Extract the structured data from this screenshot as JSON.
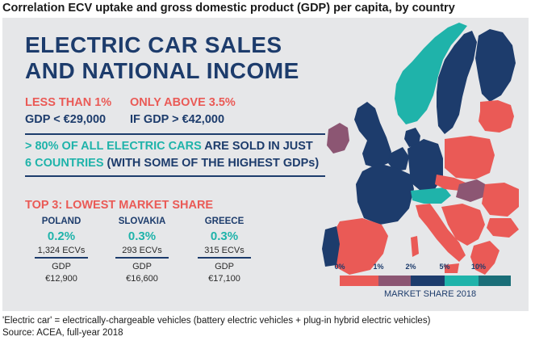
{
  "heading": "Correlation ECV uptake and gross domestic product (GDP) per capita, by country",
  "title": {
    "line1": "ELECTRIC CAR SALES",
    "line2": "AND NATIONAL INCOME"
  },
  "thresholds": {
    "low_label": "LESS THAN 1%",
    "low_gdp": "GDP < €29,000",
    "high_label": "ONLY ABOVE 3.5%",
    "high_gdp": "IF GDP > €42,000"
  },
  "statement": {
    "part1": "> 80% OF ALL ELECTRIC CARS",
    "part2": " ARE SOLD IN JUST",
    "part3": "6 COUNTRIES",
    "part4": " (WITH SOME OF THE HIGHEST GDPs)"
  },
  "top3": {
    "title": "TOP 3: LOWEST MARKET SHARE",
    "countries": [
      {
        "name": "POLAND",
        "share": "0.2%",
        "ecvs": "1,324 ECVs",
        "gdp_label": "GDP",
        "gdp": "€12,900"
      },
      {
        "name": "SLOVAKIA",
        "share": "0.3%",
        "ecvs": "293 ECVs",
        "gdp_label": "GDP",
        "gdp": "€16,600"
      },
      {
        "name": "GREECE",
        "share": "0.3%",
        "ecvs": "315 ECVs",
        "gdp_label": "GDP",
        "gdp": "€17,100"
      }
    ]
  },
  "legend": {
    "ticks": [
      "0%",
      "1%",
      "2%",
      "5%",
      "10%"
    ],
    "colors": [
      "#ea5a56",
      "#8c5673",
      "#1d3c6c",
      "#1fb3aa",
      "#1a6e78"
    ],
    "title": "MARKET SHARE 2018"
  },
  "colors": {
    "red": "#ea5a56",
    "navy": "#1d3c6c",
    "teal": "#1fb3aa",
    "mauve": "#8c5673",
    "panel": "#e6e7e9"
  },
  "footnote": {
    "line1": "'Electric car' = electrically-chargeable vehicles (battery electric vehicles + plug-in hybrid electric vehicles)",
    "line2": "Source: ACEA, full-year 2018"
  }
}
